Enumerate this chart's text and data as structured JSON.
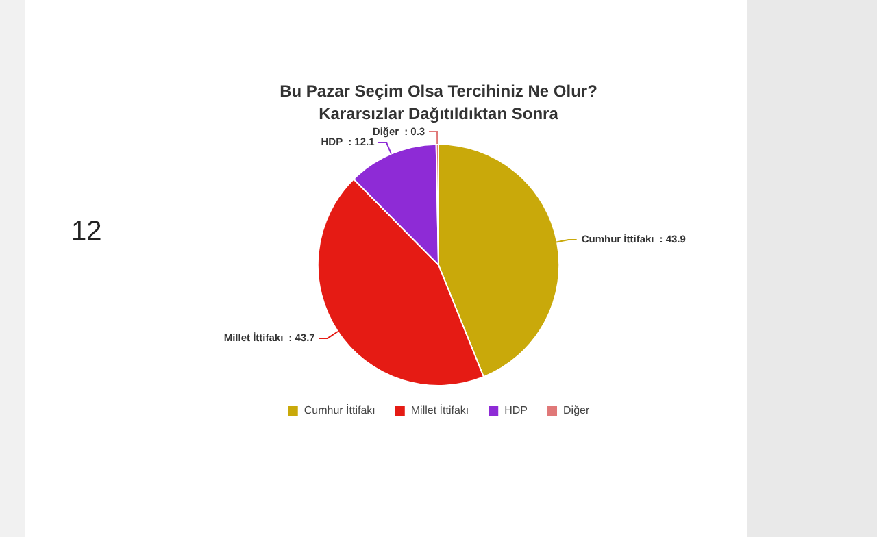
{
  "chart_data": {
    "type": "pie",
    "title": "Bu Pazar Seçim Olsa Tercihiniz Ne Olur?",
    "subtitle": "Kararsızlar Dağıtıldıktan Sonra",
    "categories": [
      "Cumhur İttifakı",
      "Millet İttifakı",
      "HDP",
      "Diğer"
    ],
    "values": [
      43.9,
      43.7,
      12.1,
      0.3
    ],
    "colors": [
      "#c9a90a",
      "#e51b14",
      "#8e2bd6",
      "#e07878"
    ],
    "value_labels": [
      ": 43.9",
      ": 43.7",
      ": 12.1",
      ": 0.3"
    ],
    "legend": "bottom",
    "annotations": [
      "12"
    ]
  }
}
